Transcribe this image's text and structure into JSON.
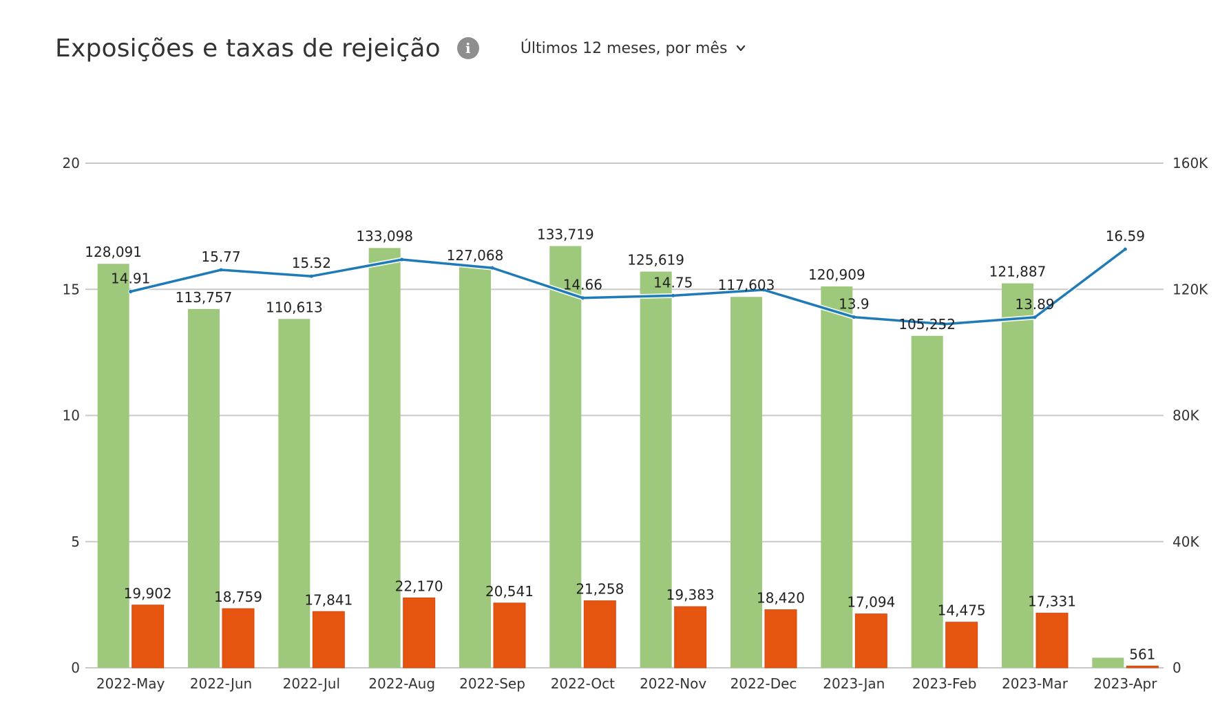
{
  "header": {
    "title": "Exposições e taxas de rejeição",
    "info_icon": "info-icon",
    "period_label": "Últimos 12 meses, por mês",
    "dropdown_icon": "chevron-down-icon"
  },
  "colors": {
    "impressions_bar": "#9ec87c",
    "rejections_bar": "#e65510",
    "rate_line": "#1f7ab8",
    "gridline": "#c8c8c8"
  },
  "chart_data": {
    "type": "bar",
    "categories": [
      "2022-May",
      "2022-Jun",
      "2022-Jul",
      "2022-Aug",
      "2022-Sep",
      "2022-Oct",
      "2022-Nov",
      "2022-Dec",
      "2023-Jan",
      "2023-Feb",
      "2023-Mar",
      "2023-Apr"
    ],
    "left_axis": {
      "ylim": [
        0,
        20
      ],
      "ticks": [
        "0",
        "5",
        "10",
        "15",
        "20"
      ]
    },
    "right_axis": {
      "ylim": [
        0,
        160000
      ],
      "ticks": [
        "0",
        "40K",
        "80K",
        "120K",
        "160K"
      ]
    },
    "series": [
      {
        "type": "bar",
        "axis": "right",
        "values": [
          128091,
          113757,
          110613,
          133098,
          127068,
          133719,
          125619,
          117603,
          120909,
          105252,
          121887,
          3200
        ],
        "labels": [
          "128,091",
          "113,757",
          "110,613",
          "133,098",
          "127,068",
          "133,719",
          "125,619",
          "117,603",
          "120,909",
          "105,252",
          "121,887",
          ""
        ]
      },
      {
        "type": "bar",
        "axis": "right",
        "values": [
          19902,
          18759,
          17841,
          22170,
          20541,
          21258,
          19383,
          18420,
          17094,
          14475,
          17331,
          561
        ],
        "labels": [
          "19,902",
          "18,759",
          "17,841",
          "22,170",
          "20,541",
          "21,258",
          "19,383",
          "18,420",
          "17,094",
          "14,475",
          "17,331",
          "561"
        ]
      },
      {
        "type": "line",
        "axis": "left",
        "values": [
          14.91,
          15.77,
          15.52,
          16.18,
          15.85,
          14.66,
          14.75,
          14.98,
          13.9,
          13.62,
          13.89,
          16.59
        ],
        "labels": [
          "14.91",
          "15.77",
          "15.52",
          "",
          "",
          "14.66",
          "14.75",
          "",
          "13.9",
          "",
          "13.89",
          "16.59"
        ]
      }
    ],
    "grid": true,
    "legend": "none"
  }
}
